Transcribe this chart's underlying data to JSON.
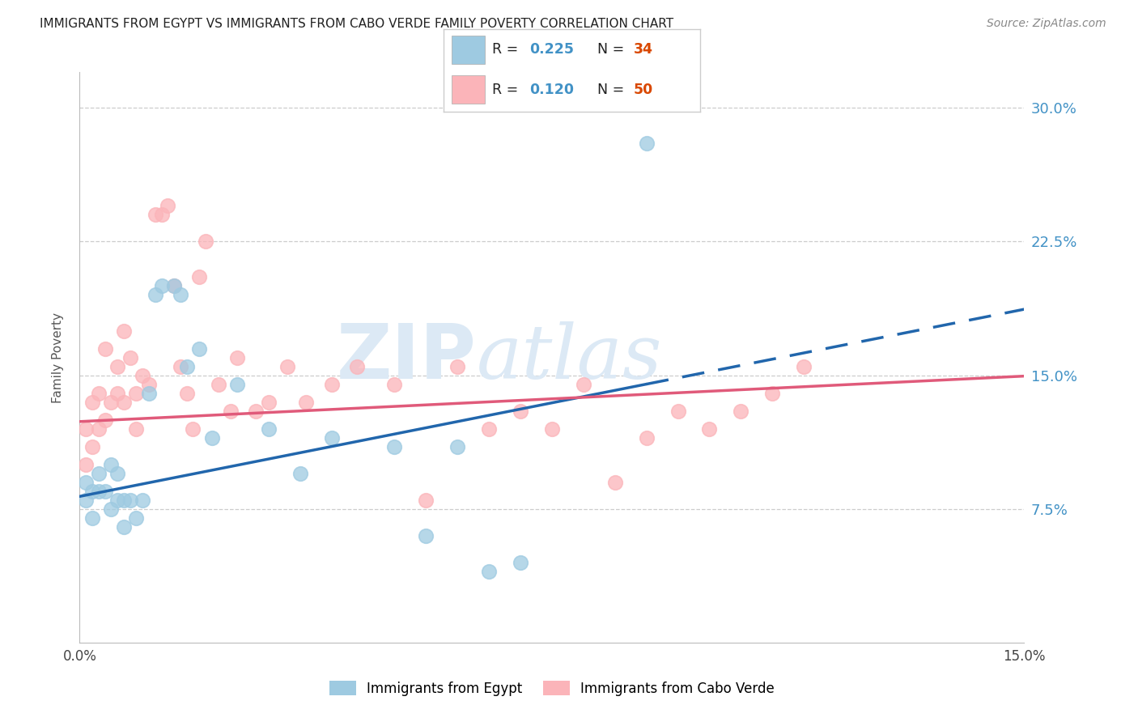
{
  "title": "IMMIGRANTS FROM EGYPT VS IMMIGRANTS FROM CABO VERDE FAMILY POVERTY CORRELATION CHART",
  "source": "Source: ZipAtlas.com",
  "ylabel": "Family Poverty",
  "x_min": 0.0,
  "x_max": 0.15,
  "y_min": 0.0,
  "y_max": 0.32,
  "color_blue": "#9ecae1",
  "color_pink": "#fbb4b9",
  "color_blue_line": "#2166ac",
  "color_pink_line": "#e05a7a",
  "color_blue_text": "#4292c6",
  "color_red_text": "#d94801",
  "color_grid": "#cccccc",
  "color_watermark": "#dce9f5",
  "legend_label_blue": "Immigrants from Egypt",
  "legend_label_pink": "Immigrants from Cabo Verde",
  "egypt_x": [
    0.001,
    0.001,
    0.002,
    0.002,
    0.003,
    0.003,
    0.004,
    0.005,
    0.005,
    0.006,
    0.006,
    0.007,
    0.007,
    0.008,
    0.009,
    0.01,
    0.011,
    0.012,
    0.013,
    0.015,
    0.016,
    0.017,
    0.019,
    0.021,
    0.025,
    0.03,
    0.035,
    0.04,
    0.05,
    0.055,
    0.06,
    0.065,
    0.07,
    0.09
  ],
  "egypt_y": [
    0.09,
    0.08,
    0.085,
    0.07,
    0.095,
    0.085,
    0.085,
    0.1,
    0.075,
    0.095,
    0.08,
    0.065,
    0.08,
    0.08,
    0.07,
    0.08,
    0.14,
    0.195,
    0.2,
    0.2,
    0.195,
    0.155,
    0.165,
    0.115,
    0.145,
    0.12,
    0.095,
    0.115,
    0.11,
    0.06,
    0.11,
    0.04,
    0.045,
    0.28
  ],
  "caboverde_x": [
    0.001,
    0.001,
    0.002,
    0.002,
    0.003,
    0.003,
    0.004,
    0.004,
    0.005,
    0.006,
    0.006,
    0.007,
    0.007,
    0.008,
    0.009,
    0.009,
    0.01,
    0.011,
    0.012,
    0.013,
    0.014,
    0.015,
    0.016,
    0.017,
    0.018,
    0.019,
    0.02,
    0.022,
    0.024,
    0.025,
    0.028,
    0.03,
    0.033,
    0.036,
    0.04,
    0.044,
    0.05,
    0.055,
    0.06,
    0.065,
    0.07,
    0.075,
    0.08,
    0.085,
    0.09,
    0.095,
    0.1,
    0.105,
    0.11,
    0.115
  ],
  "caboverde_y": [
    0.12,
    0.1,
    0.135,
    0.11,
    0.14,
    0.12,
    0.165,
    0.125,
    0.135,
    0.155,
    0.14,
    0.175,
    0.135,
    0.16,
    0.14,
    0.12,
    0.15,
    0.145,
    0.24,
    0.24,
    0.245,
    0.2,
    0.155,
    0.14,
    0.12,
    0.205,
    0.225,
    0.145,
    0.13,
    0.16,
    0.13,
    0.135,
    0.155,
    0.135,
    0.145,
    0.155,
    0.145,
    0.08,
    0.155,
    0.12,
    0.13,
    0.12,
    0.145,
    0.09,
    0.115,
    0.13,
    0.12,
    0.13,
    0.14,
    0.155
  ]
}
